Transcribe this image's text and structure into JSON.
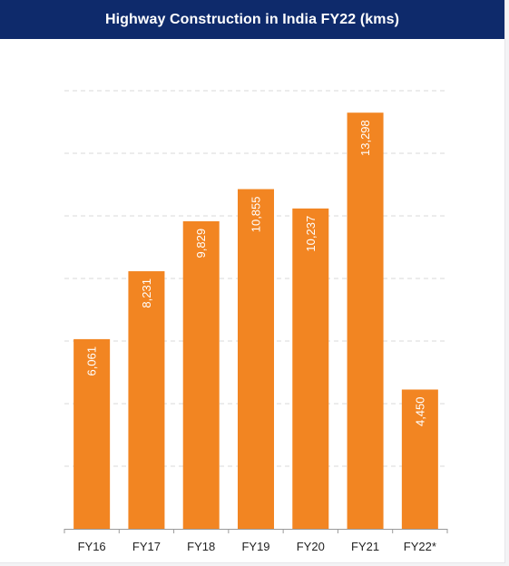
{
  "header": {
    "title": "Highway Construction in India FY22 (kms)"
  },
  "colors": {
    "title_bar": "#0e2a6b",
    "bar": "#f28522",
    "grid": "#d9d9d9",
    "axis": "#9a9a9a"
  },
  "chart_data": {
    "type": "bar",
    "title": "Highway Construction in India FY22 (kms)",
    "xlabel": "",
    "ylabel": "",
    "categories": [
      "FY16",
      "FY17",
      "FY18",
      "FY19",
      "FY20",
      "FY21",
      "FY22*"
    ],
    "values": [
      6061,
      8231,
      9829,
      10855,
      10237,
      13298,
      4450
    ],
    "value_labels": [
      "6,061",
      "8,231",
      "9,829",
      "10,855",
      "10,237",
      "13,298",
      "4,450"
    ],
    "ylim": [
      0,
      14000
    ],
    "y_gridline_step": 2000,
    "grid": true,
    "legend": "none"
  }
}
